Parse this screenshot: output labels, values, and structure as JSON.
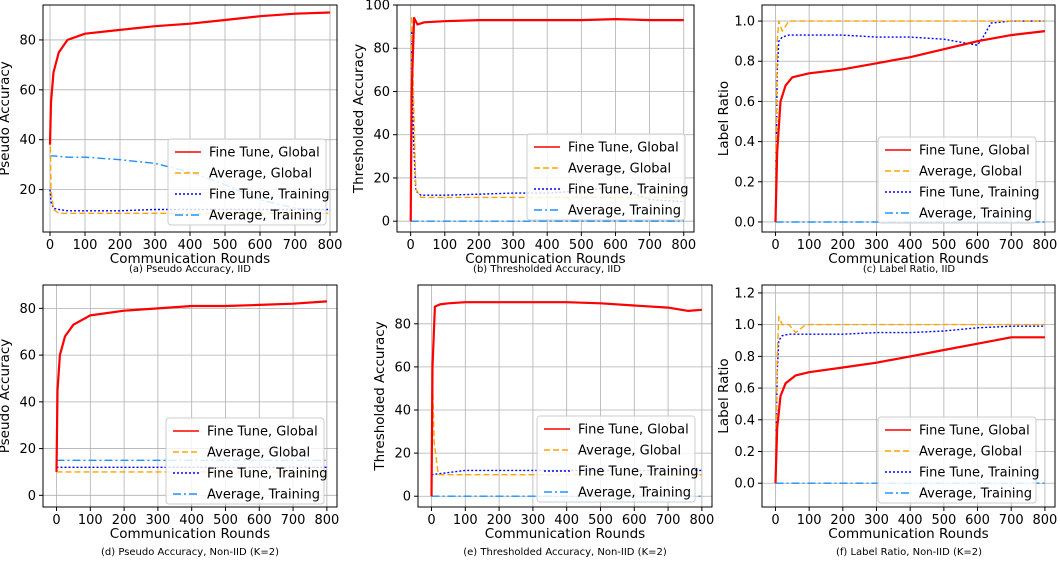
{
  "colors": {
    "fine_tune_global": "#ff0000",
    "average_global": "#ffa500",
    "fine_tune_training": "#0000ff",
    "average_training": "#1e90ff",
    "grid": "#b0b0b0",
    "axis": "#000000"
  },
  "legend_entries": [
    "Fine Tune, Global",
    "Average, Global",
    "Fine Tune, Training",
    "Average, Training"
  ],
  "chart_data": [
    {
      "type": "line",
      "caption": "(a) Pseudo Accuracy, IID",
      "xlabel": "Communication Rounds",
      "ylabel": "Pseudo Accuracy",
      "xlim": [
        -20,
        820
      ],
      "ylim": [
        3,
        94
      ],
      "xticks": [
        0,
        100,
        200,
        300,
        400,
        500,
        600,
        700,
        800
      ],
      "yticks": [
        20,
        40,
        60,
        80
      ],
      "yticklabels": [
        "20",
        "40",
        "60",
        "80"
      ],
      "grid": true,
      "legend": "lower-right",
      "series": [
        {
          "name": "Fine Tune, Global",
          "x": [
            0,
            3,
            10,
            25,
            50,
            100,
            200,
            300,
            400,
            500,
            600,
            700,
            800
          ],
          "y": [
            38,
            55,
            67,
            75,
            80,
            82.5,
            84,
            85.5,
            86.5,
            88,
            89.5,
            90.5,
            91
          ]
        },
        {
          "name": "Average, Global",
          "x": [
            0,
            3,
            10,
            25,
            50,
            100,
            200,
            300,
            400,
            500,
            600,
            700,
            800
          ],
          "y": [
            48,
            20,
            12,
            10.5,
            10.5,
            10.5,
            10.5,
            10.5,
            10.5,
            10.5,
            10.5,
            10.5,
            10.5
          ]
        },
        {
          "name": "Fine Tune, Training",
          "x": [
            0,
            3,
            10,
            25,
            50,
            100,
            200,
            300,
            400,
            500,
            600,
            700,
            800
          ],
          "y": [
            20,
            15,
            12.5,
            12,
            11.5,
            11.5,
            11.5,
            12,
            12,
            12,
            12,
            12,
            12
          ]
        },
        {
          "name": "Average, Training",
          "x": [
            0,
            3,
            10,
            50,
            100,
            200,
            300,
            400,
            500,
            600,
            700,
            800
          ],
          "y": [
            33,
            33.5,
            33.5,
            33,
            33,
            32,
            30.5,
            27,
            22,
            16,
            12.5,
            11.5
          ]
        }
      ]
    },
    {
      "type": "line",
      "caption": "(b) Thresholded Accuracy, IID",
      "xlabel": "Communication Rounds",
      "ylabel": "Thresholded Accuracy",
      "xlim": [
        -40,
        830
      ],
      "ylim": [
        -5,
        100
      ],
      "xticks": [
        0,
        100,
        200,
        300,
        400,
        500,
        600,
        700,
        800
      ],
      "yticks": [
        0,
        20,
        40,
        60,
        80,
        100
      ],
      "yticklabels": [
        "0",
        "20",
        "40",
        "60",
        "80",
        "100"
      ],
      "grid": true,
      "legend": "lower-right",
      "series": [
        {
          "name": "Fine Tune, Global",
          "x": [
            0,
            3,
            10,
            20,
            40,
            100,
            200,
            300,
            400,
            500,
            600,
            700,
            800
          ],
          "y": [
            0,
            60,
            94,
            91,
            92,
            92.5,
            93,
            93,
            93,
            93,
            93.5,
            93,
            93
          ]
        },
        {
          "name": "Average, Global",
          "x": [
            0,
            3,
            8,
            15,
            30,
            100,
            200,
            300,
            400,
            500,
            600,
            700,
            800
          ],
          "y": [
            0,
            95,
            60,
            15,
            11,
            11,
            11,
            11,
            11,
            11,
            11,
            11,
            11
          ]
        },
        {
          "name": "Fine Tune, Training",
          "x": [
            0,
            3,
            8,
            15,
            30,
            100,
            200,
            300,
            400,
            500,
            600,
            700,
            800
          ],
          "y": [
            0,
            90,
            40,
            14,
            12,
            12,
            12.5,
            13,
            13,
            14,
            16,
            10,
            9
          ]
        },
        {
          "name": "Average, Training",
          "x": [
            0,
            100,
            200,
            300,
            400,
            500,
            600,
            700,
            800
          ],
          "y": [
            0,
            0,
            0,
            0,
            0,
            0,
            0,
            0,
            0
          ]
        }
      ]
    },
    {
      "type": "line",
      "caption": "(c) Label Ratio, IID",
      "xlabel": "Communication Rounds",
      "ylabel": "Label Ratio",
      "xlim": [
        -40,
        830
      ],
      "ylim": [
        -0.05,
        1.08
      ],
      "xticks": [
        0,
        100,
        200,
        300,
        400,
        500,
        600,
        700,
        800
      ],
      "yticks": [
        0,
        0.2,
        0.4,
        0.6,
        0.8,
        1.0
      ],
      "yticklabels": [
        "0.0",
        "0.2",
        "0.4",
        "0.6",
        "0.8",
        "1.0"
      ],
      "grid": true,
      "legend": "lower-right",
      "series": [
        {
          "name": "Fine Tune, Global",
          "x": [
            0,
            5,
            15,
            30,
            50,
            100,
            200,
            300,
            400,
            500,
            600,
            700,
            800
          ],
          "y": [
            0,
            0.35,
            0.6,
            0.68,
            0.72,
            0.74,
            0.76,
            0.79,
            0.82,
            0.86,
            0.9,
            0.93,
            0.95
          ]
        },
        {
          "name": "Average, Global",
          "x": [
            0,
            5,
            10,
            20,
            40,
            100,
            200,
            300,
            400,
            500,
            600,
            700,
            800
          ],
          "y": [
            0,
            0.9,
            1.0,
            0.95,
            1.0,
            1.0,
            1.0,
            1.0,
            1.0,
            1.0,
            1.0,
            1.0,
            1.0
          ]
        },
        {
          "name": "Fine Tune, Training",
          "x": [
            0,
            5,
            10,
            20,
            40,
            100,
            200,
            300,
            400,
            500,
            600,
            620,
            640,
            700,
            800
          ],
          "y": [
            0,
            0.75,
            0.9,
            0.92,
            0.93,
            0.93,
            0.93,
            0.92,
            0.92,
            0.91,
            0.88,
            0.93,
            0.99,
            1.0,
            1.0
          ]
        },
        {
          "name": "Average, Training",
          "x": [
            0,
            100,
            200,
            300,
            400,
            500,
            600,
            700,
            800
          ],
          "y": [
            0,
            0,
            0,
            0,
            0,
            0,
            0,
            0,
            0
          ]
        }
      ]
    },
    {
      "type": "line",
      "caption": "(d) Pseudo Accuracy, Non-IID (K=2)",
      "xlabel": "Communication Rounds",
      "ylabel": "Pseudo Accuracy",
      "xlim": [
        -40,
        830
      ],
      "ylim": [
        -5,
        90
      ],
      "xticks": [
        0,
        100,
        200,
        300,
        400,
        500,
        600,
        700,
        800
      ],
      "yticks": [
        0,
        20,
        40,
        60,
        80
      ],
      "yticklabels": [
        "0",
        "20",
        "40",
        "60",
        "80"
      ],
      "grid": true,
      "legend": "lower-right",
      "series": [
        {
          "name": "Fine Tune, Global",
          "x": [
            0,
            3,
            10,
            25,
            50,
            100,
            200,
            300,
            400,
            500,
            600,
            700,
            800
          ],
          "y": [
            10,
            45,
            60,
            68,
            73,
            77,
            79,
            80,
            81,
            81,
            81.5,
            82,
            83
          ]
        },
        {
          "name": "Average, Global",
          "x": [
            0,
            100,
            200,
            300,
            400,
            500,
            600,
            700,
            800
          ],
          "y": [
            10,
            10,
            10,
            10,
            10,
            10,
            10,
            10,
            10
          ]
        },
        {
          "name": "Fine Tune, Training",
          "x": [
            0,
            100,
            200,
            300,
            400,
            500,
            600,
            700,
            800
          ],
          "y": [
            12,
            12,
            12,
            12,
            12,
            12,
            12,
            12,
            12
          ]
        },
        {
          "name": "Average, Training",
          "x": [
            0,
            100,
            200,
            300,
            400,
            500,
            600,
            700,
            800
          ],
          "y": [
            15,
            15,
            15,
            15,
            15,
            15,
            15,
            15,
            15
          ]
        }
      ]
    },
    {
      "type": "line",
      "caption": "(e) Thresholded Accuracy, Non-IID (K=2)",
      "xlabel": "Communication Rounds",
      "ylabel": "Thresholded Accuracy",
      "xlim": [
        -40,
        830
      ],
      "ylim": [
        -5,
        98
      ],
      "xticks": [
        0,
        100,
        200,
        300,
        400,
        500,
        600,
        700,
        800
      ],
      "yticks": [
        0,
        20,
        40,
        60,
        80
      ],
      "yticklabels": [
        "0",
        "20",
        "40",
        "60",
        "80"
      ],
      "grid": true,
      "legend": "lower-right",
      "series": [
        {
          "name": "Fine Tune, Global",
          "x": [
            0,
            3,
            10,
            25,
            50,
            100,
            200,
            300,
            400,
            500,
            600,
            700,
            760,
            800
          ],
          "y": [
            0,
            60,
            88,
            89,
            89.5,
            90,
            90,
            90,
            90,
            89.5,
            88.5,
            87.5,
            86,
            86.5
          ]
        },
        {
          "name": "Average, Global",
          "x": [
            0,
            3,
            8,
            20,
            100,
            200,
            300,
            400,
            500,
            600,
            700,
            800
          ],
          "y": [
            0,
            55,
            25,
            10,
            10,
            10,
            10,
            10,
            10,
            10,
            10,
            10
          ]
        },
        {
          "name": "Fine Tune, Training",
          "x": [
            0,
            100,
            200,
            300,
            400,
            500,
            600,
            700,
            800
          ],
          "y": [
            10,
            12,
            12,
            12,
            12,
            12,
            12,
            12,
            12
          ]
        },
        {
          "name": "Average, Training",
          "x": [
            0,
            100,
            200,
            300,
            400,
            500,
            600,
            700,
            800
          ],
          "y": [
            0,
            0,
            0,
            0,
            0,
            0,
            0,
            0,
            0
          ]
        }
      ]
    },
    {
      "type": "line",
      "caption": "(f) Label Ratio, Non-IID (K=2)",
      "xlabel": "Communication Rounds",
      "ylabel": "Label Ratio",
      "xlim": [
        -40,
        830
      ],
      "ylim": [
        -0.15,
        1.25
      ],
      "xticks": [
        0,
        100,
        200,
        300,
        400,
        500,
        600,
        700,
        800
      ],
      "yticks": [
        0,
        0.2,
        0.4,
        0.6,
        0.8,
        1.0,
        1.2
      ],
      "yticklabels": [
        "0.0",
        "0.2",
        "0.4",
        "0.6",
        "0.8",
        "1.0",
        "1.2"
      ],
      "grid": true,
      "legend": "lower-right",
      "series": [
        {
          "name": "Fine Tune, Global",
          "x": [
            0,
            5,
            15,
            30,
            60,
            100,
            200,
            300,
            400,
            500,
            600,
            700,
            800
          ],
          "y": [
            0,
            0.35,
            0.55,
            0.63,
            0.68,
            0.7,
            0.73,
            0.76,
            0.8,
            0.84,
            0.88,
            0.92,
            0.92
          ]
        },
        {
          "name": "Average, Global",
          "x": [
            0,
            5,
            10,
            20,
            40,
            60,
            90,
            100,
            200,
            300,
            400,
            500,
            600,
            700,
            800
          ],
          "y": [
            0,
            0.8,
            1.05,
            1.0,
            1.0,
            0.95,
            1.0,
            1.0,
            1.0,
            1.0,
            1.0,
            1.0,
            1.0,
            1.0,
            1.0
          ]
        },
        {
          "name": "Fine Tune, Training",
          "x": [
            0,
            5,
            10,
            20,
            40,
            100,
            200,
            300,
            400,
            500,
            600,
            700,
            800
          ],
          "y": [
            0,
            0.7,
            0.9,
            0.93,
            0.94,
            0.94,
            0.94,
            0.95,
            0.95,
            0.96,
            0.98,
            0.99,
            0.99
          ]
        },
        {
          "name": "Average, Training",
          "x": [
            0,
            100,
            200,
            300,
            400,
            500,
            600,
            700,
            800
          ],
          "y": [
            0,
            0,
            0,
            0,
            0,
            0,
            0,
            0,
            0
          ]
        }
      ]
    }
  ]
}
